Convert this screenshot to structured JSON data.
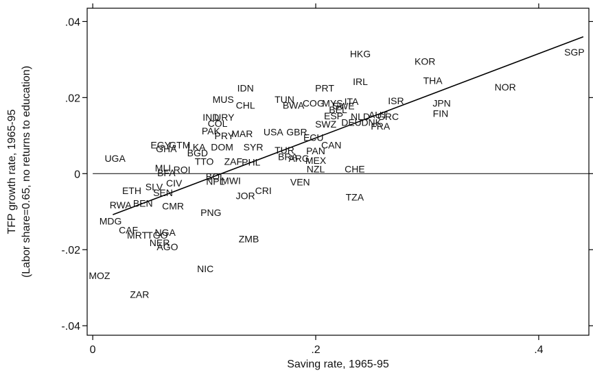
{
  "chart_data": {
    "type": "scatter",
    "title": "",
    "xlabel": "Saving rate, 1965-95",
    "ylabel": "TFP growth rate, 1965-95",
    "ylabel_sub": "(Labor share=0.65, no returns to education)",
    "xlim": [
      -0.005,
      0.445
    ],
    "ylim": [
      -0.0425,
      0.0435
    ],
    "x_ticks": [
      {
        "value": 0,
        "label": "0"
      },
      {
        "value": 0.2,
        "label": ".2"
      },
      {
        "value": 0.4,
        "label": ".4"
      }
    ],
    "y_ticks": [
      {
        "value": 0.04,
        "label": ".04"
      },
      {
        "value": 0.02,
        "label": ".02"
      },
      {
        "value": 0,
        "label": "0"
      },
      {
        "value": -0.02,
        "label": "-.02"
      },
      {
        "value": -0.04,
        "label": "-.04"
      }
    ],
    "grid": false,
    "reference_line_y": 0,
    "fit_line": {
      "x": [
        0.018,
        0.44
      ],
      "y": [
        -0.0108,
        0.036
      ]
    },
    "points": [
      {
        "label": "SGP",
        "x": 0.432,
        "y": 0.032
      },
      {
        "label": "HKG",
        "x": 0.24,
        "y": 0.0315
      },
      {
        "label": "KOR",
        "x": 0.298,
        "y": 0.0295
      },
      {
        "label": "THA",
        "x": 0.305,
        "y": 0.0245
      },
      {
        "label": "NOR",
        "x": 0.37,
        "y": 0.0228
      },
      {
        "label": "IRL",
        "x": 0.24,
        "y": 0.0242
      },
      {
        "label": "PRT",
        "x": 0.208,
        "y": 0.0225
      },
      {
        "label": "IDN",
        "x": 0.137,
        "y": 0.0225
      },
      {
        "label": "ISR",
        "x": 0.272,
        "y": 0.0192
      },
      {
        "label": "JPN",
        "x": 0.313,
        "y": 0.0185
      },
      {
        "label": "FIN",
        "x": 0.312,
        "y": 0.0158
      },
      {
        "label": "MUS",
        "x": 0.117,
        "y": 0.0195
      },
      {
        "label": "TUN",
        "x": 0.172,
        "y": 0.0195
      },
      {
        "label": "CHL",
        "x": 0.137,
        "y": 0.018
      },
      {
        "label": "BWA",
        "x": 0.18,
        "y": 0.018
      },
      {
        "label": "COG",
        "x": 0.198,
        "y": 0.0185
      },
      {
        "label": "MYS",
        "x": 0.215,
        "y": 0.0185
      },
      {
        "label": "SWE",
        "x": 0.225,
        "y": 0.0178
      },
      {
        "label": "ITA",
        "x": 0.232,
        "y": 0.019
      },
      {
        "label": "BEL",
        "x": 0.22,
        "y": 0.0168
      },
      {
        "label": "ESP",
        "x": 0.216,
        "y": 0.0152
      },
      {
        "label": "NLD",
        "x": 0.24,
        "y": 0.015
      },
      {
        "label": "AUT",
        "x": 0.256,
        "y": 0.0155
      },
      {
        "label": "GRC",
        "x": 0.265,
        "y": 0.015
      },
      {
        "label": "DNK",
        "x": 0.25,
        "y": 0.0135
      },
      {
        "label": "FRA",
        "x": 0.258,
        "y": 0.0125
      },
      {
        "label": "SWZ",
        "x": 0.209,
        "y": 0.013
      },
      {
        "label": "DEU",
        "x": 0.232,
        "y": 0.0135
      },
      {
        "label": "IND",
        "x": 0.106,
        "y": 0.0148
      },
      {
        "label": "URY",
        "x": 0.118,
        "y": 0.0148
      },
      {
        "label": "COL",
        "x": 0.112,
        "y": 0.0132
      },
      {
        "label": "PAK",
        "x": 0.106,
        "y": 0.0112
      },
      {
        "label": "PRY",
        "x": 0.118,
        "y": 0.01
      },
      {
        "label": "MAR",
        "x": 0.134,
        "y": 0.0105
      },
      {
        "label": "USA",
        "x": 0.162,
        "y": 0.011
      },
      {
        "label": "GBR",
        "x": 0.183,
        "y": 0.011
      },
      {
        "label": "ECU",
        "x": 0.198,
        "y": 0.0095
      },
      {
        "label": "CAN",
        "x": 0.214,
        "y": 0.0075
      },
      {
        "label": "EGY",
        "x": 0.061,
        "y": 0.0075
      },
      {
        "label": "GTM",
        "x": 0.078,
        "y": 0.0075
      },
      {
        "label": "GHA",
        "x": 0.066,
        "y": 0.0065
      },
      {
        "label": "LKA",
        "x": 0.093,
        "y": 0.007
      },
      {
        "label": "DOM",
        "x": 0.116,
        "y": 0.007
      },
      {
        "label": "SYR",
        "x": 0.144,
        "y": 0.007
      },
      {
        "label": "BGD",
        "x": 0.094,
        "y": 0.0055
      },
      {
        "label": "TUR",
        "x": 0.172,
        "y": 0.0062
      },
      {
        "label": "PAN",
        "x": 0.2,
        "y": 0.006
      },
      {
        "label": "UGA",
        "x": 0.02,
        "y": 0.004
      },
      {
        "label": "ZAF",
        "x": 0.126,
        "y": 0.0032
      },
      {
        "label": "PHL",
        "x": 0.142,
        "y": 0.003
      },
      {
        "label": "BRA",
        "x": 0.175,
        "y": 0.0045
      },
      {
        "label": "ARG",
        "x": 0.185,
        "y": 0.004
      },
      {
        "label": "MEX",
        "x": 0.2,
        "y": 0.0035
      },
      {
        "label": "TTO",
        "x": 0.1,
        "y": 0.0032
      },
      {
        "label": "NZL",
        "x": 0.2,
        "y": 0.0012
      },
      {
        "label": "CHE",
        "x": 0.235,
        "y": 0.0012
      },
      {
        "label": "MLI",
        "x": 0.063,
        "y": 0.0015
      },
      {
        "label": "BFA",
        "x": 0.066,
        "y": 0.0002
      },
      {
        "label": "ROI",
        "x": 0.08,
        "y": 0.001
      },
      {
        "label": "BOL",
        "x": 0.11,
        "y": -0.0008
      },
      {
        "label": "NPL",
        "x": 0.11,
        "y": -0.002
      },
      {
        "label": "MWI",
        "x": 0.124,
        "y": -0.0018
      },
      {
        "label": "VEN",
        "x": 0.186,
        "y": -0.0022
      },
      {
        "label": "SLV",
        "x": 0.055,
        "y": -0.0035
      },
      {
        "label": "CIV",
        "x": 0.073,
        "y": -0.0025
      },
      {
        "label": "SEN",
        "x": 0.063,
        "y": -0.005
      },
      {
        "label": "ETH",
        "x": 0.035,
        "y": -0.0045
      },
      {
        "label": "JOR",
        "x": 0.137,
        "y": -0.0058
      },
      {
        "label": "CRI",
        "x": 0.153,
        "y": -0.0045
      },
      {
        "label": "TZA",
        "x": 0.235,
        "y": -0.0062
      },
      {
        "label": "RWA",
        "x": 0.025,
        "y": -0.0082
      },
      {
        "label": "BEN",
        "x": 0.045,
        "y": -0.0078
      },
      {
        "label": "CMR",
        "x": 0.072,
        "y": -0.0085
      },
      {
        "label": "PNG",
        "x": 0.106,
        "y": -0.0102
      },
      {
        "label": "MDG",
        "x": 0.016,
        "y": -0.0125
      },
      {
        "label": "CAF",
        "x": 0.032,
        "y": -0.0148
      },
      {
        "label": "MRT",
        "x": 0.04,
        "y": -0.0162
      },
      {
        "label": "TGO",
        "x": 0.058,
        "y": -0.0162
      },
      {
        "label": "NGA",
        "x": 0.065,
        "y": -0.0155
      },
      {
        "label": "NER",
        "x": 0.06,
        "y": -0.0182
      },
      {
        "label": "AGO",
        "x": 0.067,
        "y": -0.0192
      },
      {
        "label": "ZMB",
        "x": 0.14,
        "y": -0.0172
      },
      {
        "label": "NIC",
        "x": 0.101,
        "y": -0.025
      },
      {
        "label": "MOZ",
        "x": 0.006,
        "y": -0.0268
      },
      {
        "label": "ZAR",
        "x": 0.042,
        "y": -0.0318
      }
    ]
  }
}
